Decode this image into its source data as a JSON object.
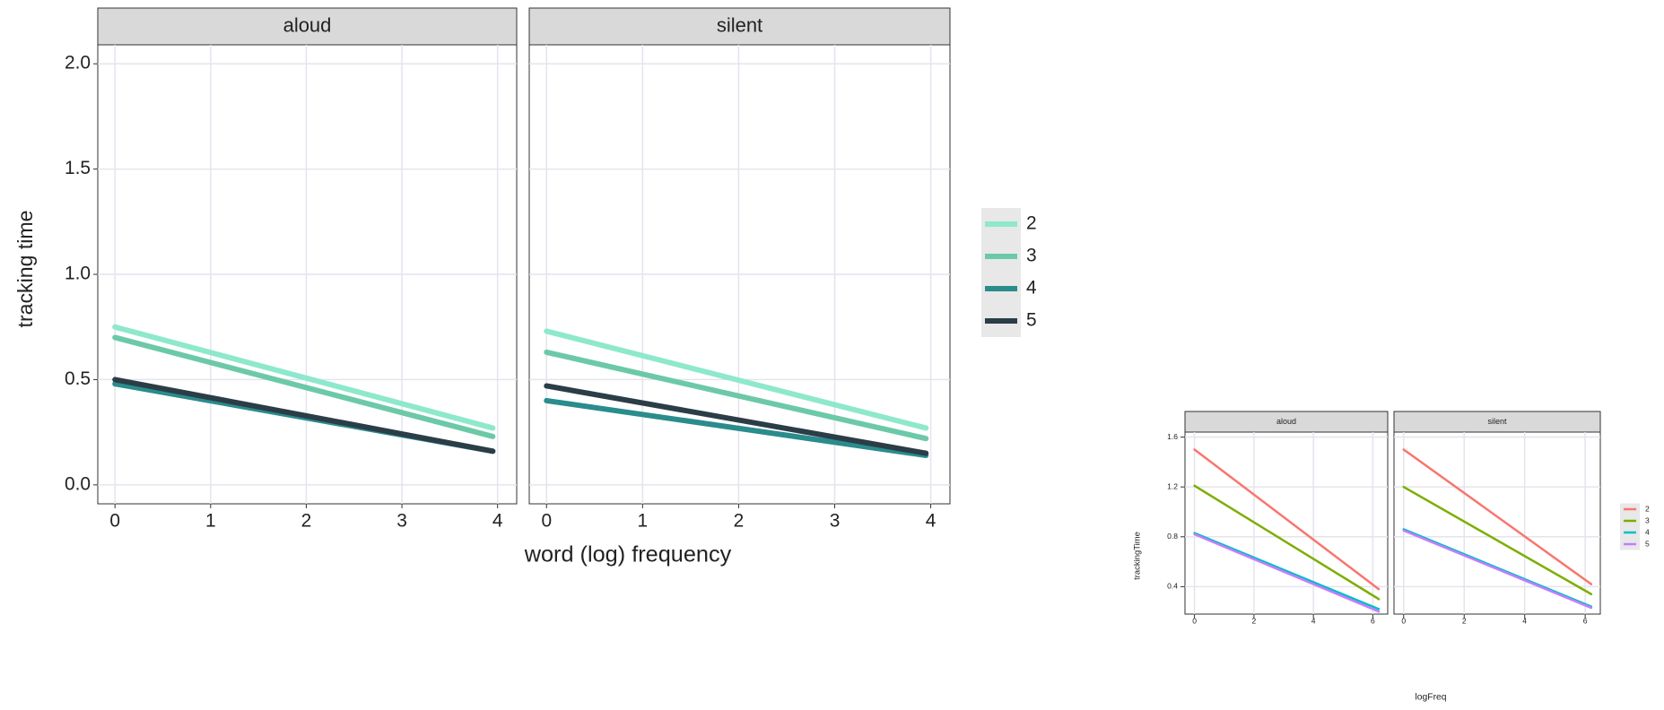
{
  "chart_data": [
    {
      "type": "line",
      "panels": [
        "aloud",
        "silent"
      ],
      "x_label": "word (log) frequency",
      "y_label": "tracking time",
      "x": [
        0,
        3.95
      ],
      "xlim": [
        -0.18,
        4.2
      ],
      "xticks": [
        0,
        1,
        2,
        3,
        4
      ],
      "ylim": [
        -0.09,
        2.09
      ],
      "yticks": [
        {
          "value": 0,
          "label": "0.0"
        },
        {
          "value": 0.5,
          "label": "0.5"
        },
        {
          "value": 1,
          "label": "1.0"
        },
        {
          "value": 1.5,
          "label": "1.5"
        },
        {
          "value": 2,
          "label": "2.0"
        }
      ],
      "grid": true,
      "series": [
        {
          "name": "2",
          "color": "#8ee8cc",
          "values": [
            [
              0.75,
              0.27
            ],
            [
              0.73,
              0.27
            ]
          ]
        },
        {
          "name": "3",
          "color": "#6cc9a8",
          "values": [
            [
              0.7,
              0.23
            ],
            [
              0.63,
              0.22
            ]
          ]
        },
        {
          "name": "4",
          "color": "#2a8c8c",
          "values": [
            [
              0.48,
              0.16
            ],
            [
              0.4,
              0.14
            ]
          ]
        },
        {
          "name": "5",
          "color": "#2b3d47",
          "values": [
            [
              0.5,
              0.16
            ],
            [
              0.47,
              0.15
            ]
          ]
        }
      ]
    },
    {
      "type": "line",
      "panels": [
        "aloud",
        "silent"
      ],
      "x_label": "logFreq",
      "y_label": "trackingTime",
      "x": [
        0,
        6.2
      ],
      "xlim": [
        -0.32,
        6.5
      ],
      "xticks": [
        0,
        2,
        4,
        6
      ],
      "ylim": [
        0.18,
        1.64
      ],
      "yticks": [
        {
          "value": 0.4,
          "label": "0.4"
        },
        {
          "value": 0.8,
          "label": "0.8"
        },
        {
          "value": 1.2,
          "label": "1.2"
        },
        {
          "value": 1.6,
          "label": "1.6"
        }
      ],
      "grid": true,
      "series": [
        {
          "name": "2",
          "color": "#f8766d",
          "values": [
            [
              1.5,
              0.38
            ],
            [
              1.5,
              0.42
            ]
          ]
        },
        {
          "name": "3",
          "color": "#7cae00",
          "values": [
            [
              1.21,
              0.3
            ],
            [
              1.2,
              0.34
            ]
          ]
        },
        {
          "name": "4",
          "color": "#00bfc4",
          "values": [
            [
              0.83,
              0.22
            ],
            [
              0.86,
              0.24
            ]
          ]
        },
        {
          "name": "5",
          "color": "#c77cff",
          "values": [
            [
              0.82,
              0.2
            ],
            [
              0.85,
              0.23
            ]
          ]
        }
      ]
    }
  ]
}
